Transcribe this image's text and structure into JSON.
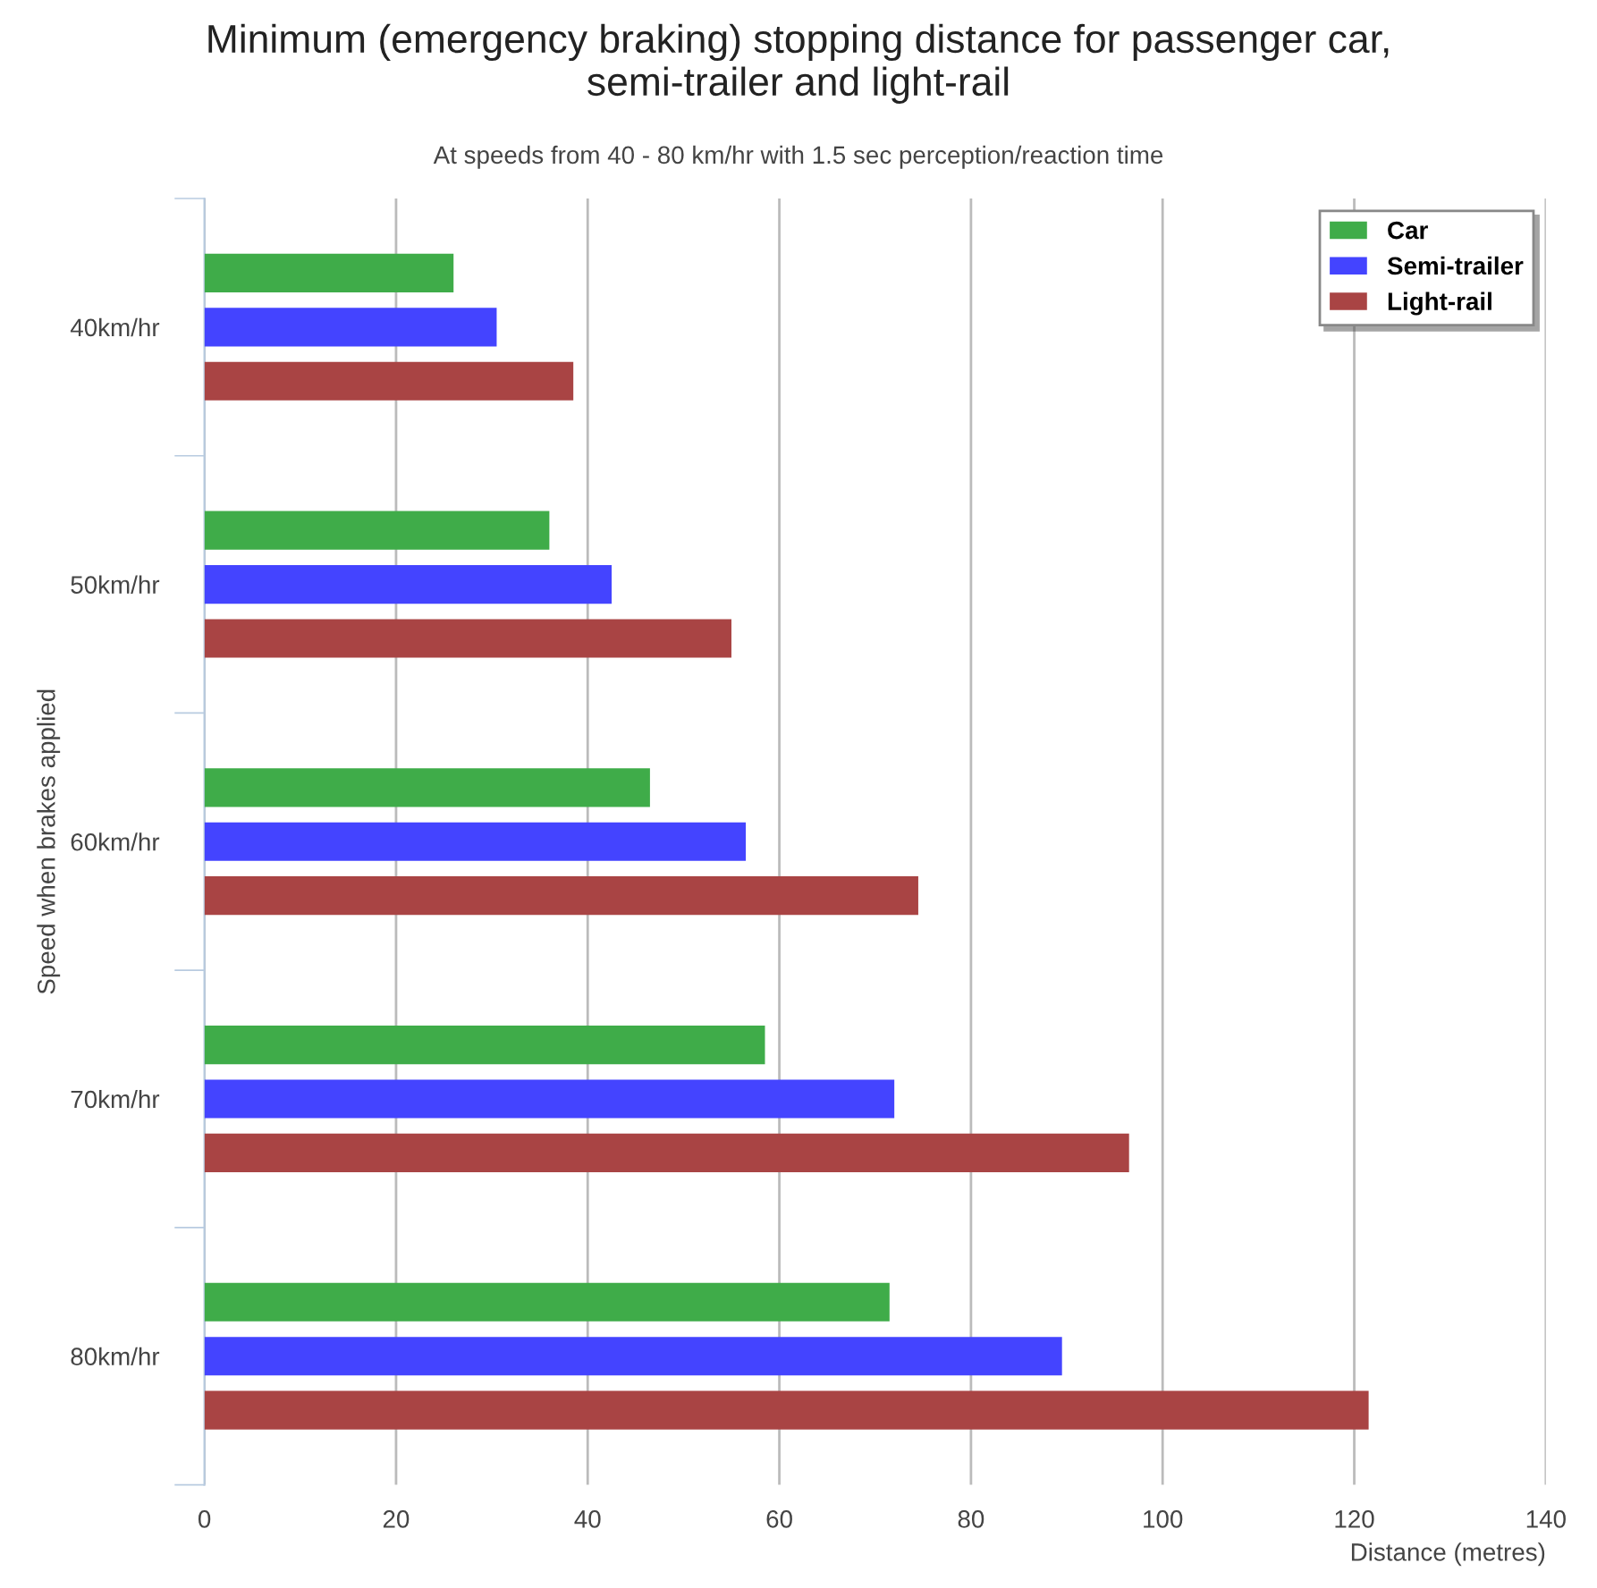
{
  "chart_data": {
    "type": "bar",
    "orientation": "horizontal",
    "title": "Minimum (emergency braking) stopping distance for passenger car,\nsemi-trailer and light-rail",
    "subtitle": "At speeds from 40 - 80 km/hr with 1.5 sec perception/reaction time",
    "xlabel": "Distance (metres)",
    "ylabel": "Speed when brakes applied",
    "categories": [
      "40km/hr",
      "50km/hr",
      "60km/hr",
      "70km/hr",
      "80km/hr"
    ],
    "series": [
      {
        "name": "Car",
        "color": "#3fac49",
        "values": [
          26,
          36,
          46.5,
          58.5,
          71.5
        ]
      },
      {
        "name": "Semi-trailer",
        "color": "#4444ff",
        "values": [
          30.5,
          42.5,
          56.5,
          72,
          89.5
        ]
      },
      {
        "name": "Light-rail",
        "color": "#a94444",
        "values": [
          38.5,
          55,
          74.5,
          96.5,
          121.5
        ]
      }
    ],
    "xlim": [
      0,
      140
    ],
    "xticks": [
      0,
      20,
      40,
      60,
      80,
      100,
      120,
      140
    ],
    "grid": "x",
    "legend": "top right"
  }
}
